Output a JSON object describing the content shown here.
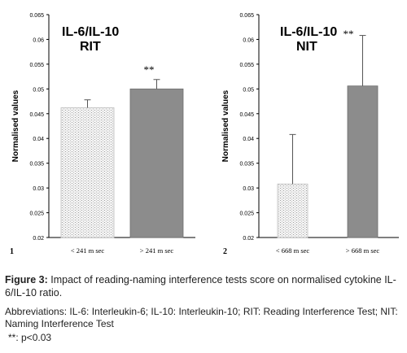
{
  "chart_data": [
    {
      "type": "bar",
      "panel_number": "1",
      "title_line1": "IL-6/IL-10",
      "title_line2": "RIT",
      "ylabel": "Normalised values",
      "ylim": [
        0.02,
        0.065
      ],
      "yticks": [
        "0.02",
        "0.025",
        "0.03",
        "0.035",
        "0.04",
        "0.045",
        "0.05",
        "0.055",
        "0.06",
        "0.065"
      ],
      "categories": [
        "< 241  m sec",
        "> 241 m sec"
      ],
      "values": [
        0.0462,
        0.05
      ],
      "error_upper": [
        0.0478,
        0.0519
      ],
      "annotations": [
        "",
        "**"
      ],
      "fills": [
        "#f0f0f0",
        "#8c8c8c"
      ],
      "grid": false
    },
    {
      "type": "bar",
      "panel_number": "2",
      "title_line1": "IL-6/IL-10",
      "title_line2": "NIT",
      "title_annotation": "**",
      "ylabel": "Normalised values",
      "ylim": [
        0.02,
        0.065
      ],
      "yticks": [
        "0.02",
        "0.025",
        "0.03",
        "0.035",
        "0.04",
        "0.045",
        "0.05",
        "0.055",
        "0.06",
        "0.065"
      ],
      "categories": [
        "< 668  m sec",
        "> 668 m sec"
      ],
      "values": [
        0.0308,
        0.0506
      ],
      "error_upper": [
        0.0408,
        0.0608
      ],
      "annotations": [
        "",
        ""
      ],
      "fills": [
        "#f0f0f0",
        "#8c8c8c"
      ],
      "grid": false
    }
  ],
  "caption": {
    "label": "Figure 3:",
    "text": " Impact of reading-naming interference tests score on normalised cytokine IL-6/IL-10 ratio.",
    "abbreviations": "Abbreviations: IL-6: Interleukin-6; IL-10: Interleukin-10; RIT: Reading Interference Test; NIT: Naming Interference Test",
    "significance": "**: p<0.03"
  }
}
